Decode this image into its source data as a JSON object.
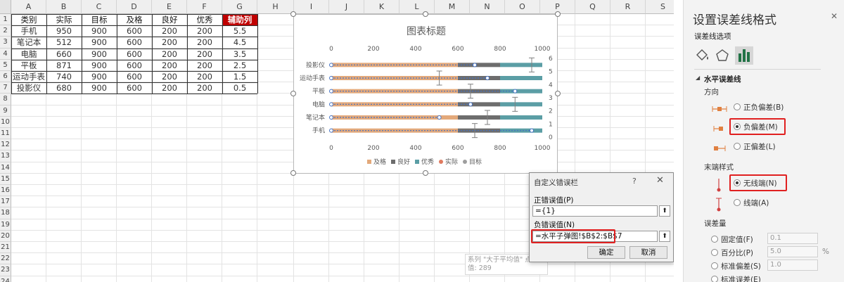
{
  "sheet": {
    "columns": [
      "A",
      "B",
      "C",
      "D",
      "E",
      "F",
      "G",
      "H",
      "I",
      "J",
      "K",
      "L",
      "M",
      "N",
      "O",
      "P",
      "Q",
      "R",
      "S"
    ],
    "rows": [
      "1",
      "2",
      "3",
      "4",
      "5",
      "6",
      "7",
      "8",
      "9",
      "10",
      "11",
      "12",
      "13",
      "14",
      "15",
      "16",
      "17",
      "18",
      "19",
      "20",
      "21",
      "22",
      "23",
      "24"
    ],
    "table": {
      "headers": [
        "类别",
        "实际",
        "目标",
        "及格",
        "良好",
        "优秀",
        "辅助列"
      ],
      "rows": [
        [
          "手机",
          "950",
          "900",
          "600",
          "200",
          "200",
          "5.5"
        ],
        [
          "笔记本",
          "512",
          "900",
          "600",
          "200",
          "200",
          "4.5"
        ],
        [
          "电脑",
          "660",
          "900",
          "600",
          "200",
          "200",
          "3.5"
        ],
        [
          "平板",
          "871",
          "900",
          "600",
          "200",
          "200",
          "2.5"
        ],
        [
          "运动手表",
          "740",
          "900",
          "600",
          "200",
          "200",
          "1.5"
        ],
        [
          "投影仪",
          "680",
          "900",
          "600",
          "200",
          "200",
          "0.5"
        ]
      ]
    }
  },
  "chart_data": {
    "type": "bar",
    "title": "图表标题",
    "categories": [
      "手机",
      "笔记本",
      "电脑",
      "平板",
      "运动手表",
      "投影仪"
    ],
    "series": [
      {
        "name": "及格",
        "values": [
          600,
          600,
          600,
          600,
          600,
          600
        ],
        "color": "#e3a97b"
      },
      {
        "name": "良好",
        "values": [
          200,
          200,
          200,
          200,
          200,
          200
        ],
        "color": "#6d6d6d"
      },
      {
        "name": "优秀",
        "values": [
          200,
          200,
          200,
          200,
          200,
          200
        ],
        "color": "#5b9ea5"
      },
      {
        "name": "实际",
        "values": [
          950,
          512,
          660,
          871,
          740,
          680
        ],
        "color": "#e07a5f"
      },
      {
        "name": "目标",
        "values": [
          900,
          900,
          900,
          900,
          900,
          900
        ],
        "color": "#9e9e9e"
      }
    ],
    "scatter_points": [
      {
        "x": 950,
        "y": 5.5
      },
      {
        "x": 512,
        "y": 4.5
      },
      {
        "x": 660,
        "y": 3.5
      },
      {
        "x": 871,
        "y": 2.5
      },
      {
        "x": 740,
        "y": 1.5
      },
      {
        "x": 680,
        "y": 0.5
      }
    ],
    "x_ticks": [
      "0",
      "200",
      "400",
      "600",
      "800",
      "1000"
    ],
    "y2_ticks": [
      "0",
      "1",
      "2",
      "3",
      "4",
      "5",
      "6"
    ],
    "xlim": [
      0,
      1000
    ],
    "y2lim": [
      0,
      6
    ],
    "legend": "bottom"
  },
  "dialog": {
    "title": "自定义错误栏",
    "help": "?",
    "close": "✕",
    "pos_label": "正错误值(P)",
    "pos_value": "={1}",
    "neg_label": "负错误值(N)",
    "neg_value": "=水平子弹图!$B$2:$B$7",
    "ok": "确定",
    "cancel": "取消",
    "collapse": "⬆"
  },
  "tooltip": {
    "line1": "系列 \"大于平均值\" 点 \"2\"",
    "line2": "值: 289"
  },
  "pane": {
    "title": "设置误差线格式",
    "close": "✕",
    "options_tab": "误差线选项",
    "section": "水平误差线",
    "direction_label": "方向",
    "dir_both": "正负偏差(B)",
    "dir_minus": "负偏差(M)",
    "dir_plus": "正偏差(L)",
    "end_style_label": "末端样式",
    "no_cap": "无线端(N)",
    "cap": "线端(A)",
    "amount_label": "误差量",
    "fixed": "固定值(F)",
    "fixed_val": "0.1",
    "percent": "百分比(P)",
    "percent_val": "5.0",
    "percent_unit": "%",
    "stdev": "标准偏差(S)",
    "stdev_val": "1.0",
    "stderr": "标准误差(E)"
  }
}
